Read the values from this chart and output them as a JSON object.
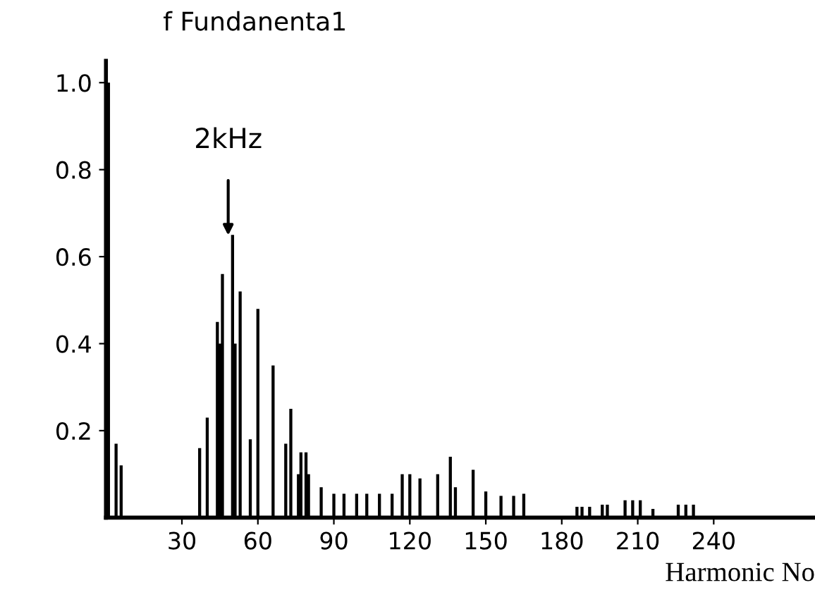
{
  "chart_data": {
    "type": "bar",
    "title": "f Fundanenta1",
    "xlabel": "Harmonic No",
    "x": [
      1,
      4,
      6,
      37,
      40,
      44,
      45,
      46,
      50,
      51,
      53,
      57,
      60,
      66,
      71,
      73,
      76,
      77,
      79,
      80,
      85,
      90,
      94,
      99,
      103,
      108,
      113,
      117,
      120,
      124,
      131,
      136,
      138,
      145,
      150,
      156,
      161,
      165,
      186,
      188,
      191,
      196,
      198,
      205,
      208,
      211,
      216,
      226,
      229,
      232
    ],
    "values": [
      1.0,
      0.17,
      0.12,
      0.16,
      0.23,
      0.45,
      0.4,
      0.56,
      0.65,
      0.4,
      0.52,
      0.18,
      0.48,
      0.35,
      0.17,
      0.25,
      0.1,
      0.15,
      0.15,
      0.1,
      0.07,
      0.055,
      0.055,
      0.055,
      0.055,
      0.055,
      0.055,
      0.1,
      0.1,
      0.09,
      0.1,
      0.14,
      0.07,
      0.11,
      0.06,
      0.05,
      0.05,
      0.055,
      0.025,
      0.025,
      0.025,
      0.03,
      0.03,
      0.04,
      0.04,
      0.04,
      0.02,
      0.03,
      0.03,
      0.03
    ],
    "color": "#000000",
    "xlim": [
      0,
      280
    ],
    "xticks": [
      30,
      60,
      90,
      120,
      150,
      180,
      210,
      240
    ],
    "ylim": [
      0,
      1.05
    ],
    "yticks": [
      0.2,
      0.4,
      0.6,
      0.8,
      {
        "value": 1.0,
        "label": "1.0"
      }
    ],
    "annotations": [
      "2kHz"
    ],
    "grid": false,
    "legend": false
  }
}
